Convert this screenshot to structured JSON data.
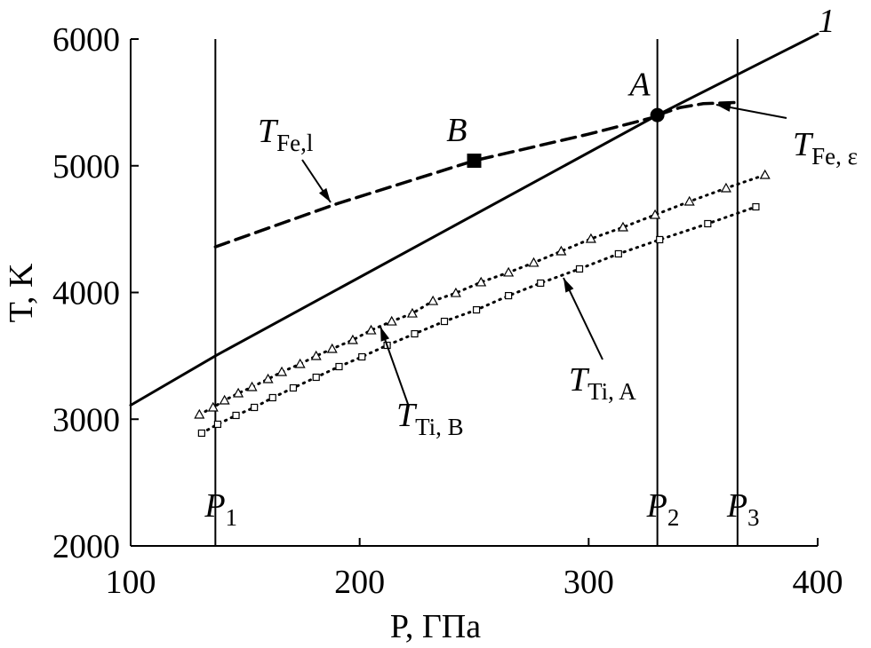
{
  "chart_data": {
    "type": "line",
    "xlabel": "P, ГПа",
    "ylabel": "T, K",
    "xlim": [
      100,
      400
    ],
    "ylim": [
      2000,
      6000
    ],
    "xticks": [
      100,
      200,
      300,
      400
    ],
    "yticks": [
      2000,
      3000,
      4000,
      5000,
      6000
    ],
    "series": [
      {
        "name": "1",
        "color": "#000000",
        "style": "solid",
        "marker": null,
        "x": [
          100,
          137,
          330,
          400
        ],
        "values": [
          3110,
          3500,
          5400,
          6040
        ]
      },
      {
        "name": "T",
        "sub": "Fe,l",
        "color": "#000000",
        "style": "dashed",
        "marker": null,
        "x": [
          137,
          190,
          250,
          300,
          330
        ],
        "values": [
          4360,
          4700,
          5040,
          5250,
          5390
        ]
      },
      {
        "name": "T",
        "sub": "Fe, ε",
        "color": "#000000",
        "style": "dashed",
        "marker": null,
        "x": [
          330,
          340,
          350,
          365
        ],
        "values": [
          5400,
          5460,
          5490,
          5500
        ]
      },
      {
        "name": "T",
        "sub": "Ti, B",
        "color": "#000000",
        "style": "dotted",
        "marker": "triangle",
        "x": [
          130,
          136,
          141,
          147,
          153,
          160,
          166,
          174,
          181,
          188,
          197,
          205,
          214,
          223,
          232,
          242,
          253,
          265,
          276,
          288,
          301,
          315,
          329,
          344,
          360,
          377
        ],
        "values": [
          3037,
          3093,
          3149,
          3205,
          3254,
          3317,
          3373,
          3436,
          3499,
          3555,
          3625,
          3702,
          3772,
          3835,
          3933,
          3996,
          4081,
          4158,
          4235,
          4326,
          4424,
          4515,
          4613,
          4718,
          4823,
          4928
        ]
      },
      {
        "name": "T",
        "sub": "Ti, A",
        "color": "#000000",
        "style": "dotted",
        "marker": "square",
        "x": [
          131,
          138,
          146,
          154,
          162,
          171,
          181,
          191,
          201,
          212,
          224,
          237,
          251,
          265,
          279,
          296,
          313,
          331,
          352,
          373
        ],
        "values": [
          2890,
          2960,
          3030,
          3093,
          3170,
          3247,
          3331,
          3415,
          3492,
          3583,
          3674,
          3772,
          3863,
          3975,
          4074,
          4186,
          4305,
          4417,
          4543,
          4676
        ]
      }
    ],
    "points": [
      {
        "label": "A",
        "x": 330,
        "y": 5400,
        "marker": "circle"
      },
      {
        "label": "B",
        "x": 250,
        "y": 5040,
        "marker": "square"
      }
    ],
    "vlines": [
      {
        "label": "P",
        "sub": "1",
        "value": 137
      },
      {
        "label": "P",
        "sub": "2",
        "value": 330
      },
      {
        "label": "P",
        "sub": "3",
        "value": 365
      }
    ]
  }
}
